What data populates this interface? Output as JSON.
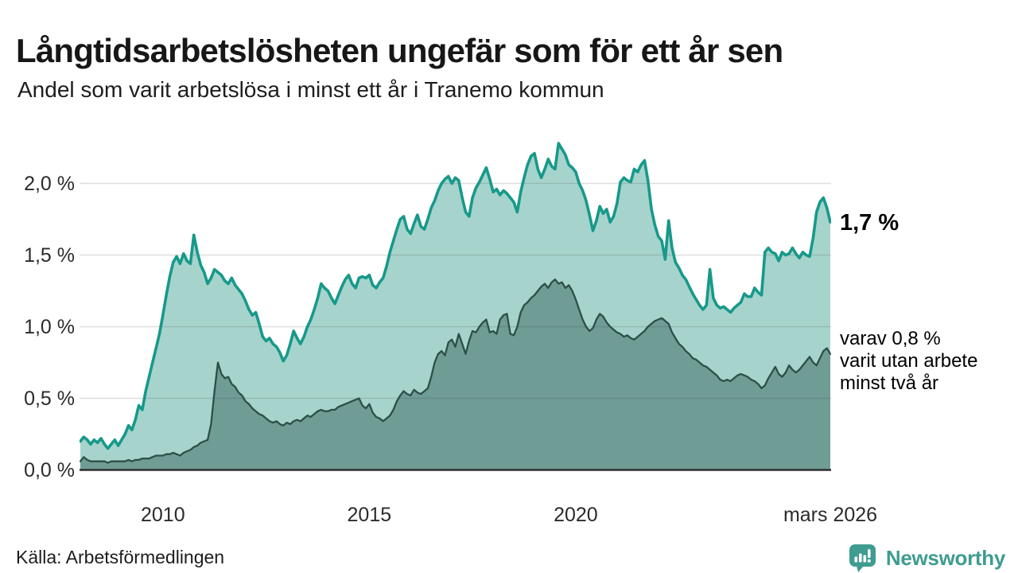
{
  "header": {
    "title": "Långtidsarbetslösheten ungefär som för ett år sen",
    "subtitle": "Andel som varit arbetslösa i minst ett år i Tranemo kommun"
  },
  "chart_data": {
    "type": "area",
    "unit": "%",
    "x_start": "2008-01",
    "x_end": "2026-03",
    "x_resolution": "monthly",
    "grid": true,
    "ylim": [
      0,
      2.34
    ],
    "y_ticks": [
      0,
      0.5,
      1.0,
      1.5,
      2.0
    ],
    "y_tick_labels": [
      "0,0 %",
      "0,5 %",
      "1,0 %",
      "1,5 %",
      "2,0 %"
    ],
    "x_tick_indices": [
      24,
      84,
      144,
      218
    ],
    "x_tick_labels": [
      "2010",
      "2015",
      "2020",
      "mars 2026"
    ],
    "grid_color": "#dadada",
    "baseline_color": "#2f2f2f",
    "series": [
      {
        "name": "Andel arbetslösa minst ett år",
        "line_color": "#17998a",
        "fill_color": "#a6d4cd",
        "last_value": 1.7,
        "values": [
          0.2,
          0.23,
          0.21,
          0.18,
          0.21,
          0.19,
          0.22,
          0.18,
          0.15,
          0.18,
          0.21,
          0.17,
          0.21,
          0.25,
          0.31,
          0.28,
          0.35,
          0.45,
          0.42,
          0.55,
          0.65,
          0.75,
          0.85,
          0.95,
          1.08,
          1.22,
          1.35,
          1.45,
          1.49,
          1.44,
          1.51,
          1.46,
          1.44,
          1.64,
          1.52,
          1.43,
          1.38,
          1.3,
          1.34,
          1.4,
          1.38,
          1.36,
          1.32,
          1.3,
          1.34,
          1.29,
          1.26,
          1.23,
          1.18,
          1.12,
          1.08,
          1.1,
          1.02,
          0.93,
          0.9,
          0.92,
          0.88,
          0.86,
          0.82,
          0.76,
          0.8,
          0.88,
          0.97,
          0.92,
          0.88,
          0.93,
          1.0,
          1.05,
          1.12,
          1.2,
          1.3,
          1.27,
          1.25,
          1.2,
          1.16,
          1.22,
          1.28,
          1.33,
          1.36,
          1.3,
          1.27,
          1.34,
          1.35,
          1.34,
          1.36,
          1.29,
          1.27,
          1.31,
          1.34,
          1.42,
          1.52,
          1.6,
          1.68,
          1.75,
          1.77,
          1.68,
          1.65,
          1.72,
          1.78,
          1.7,
          1.68,
          1.75,
          1.83,
          1.88,
          1.95,
          2.0,
          2.03,
          2.05,
          2.0,
          2.04,
          2.02,
          1.9,
          1.8,
          1.77,
          1.9,
          1.97,
          2.01,
          2.06,
          2.11,
          2.03,
          1.94,
          1.96,
          1.92,
          1.95,
          1.93,
          1.9,
          1.87,
          1.8,
          1.94,
          2.04,
          2.13,
          2.19,
          2.21,
          2.1,
          2.04,
          2.1,
          2.17,
          2.12,
          2.1,
          2.28,
          2.24,
          2.2,
          2.13,
          2.11,
          2.08,
          2.0,
          1.95,
          1.88,
          1.78,
          1.67,
          1.74,
          1.84,
          1.79,
          1.82,
          1.73,
          1.77,
          1.86,
          2.01,
          2.04,
          2.02,
          2.01,
          2.1,
          2.08,
          2.13,
          2.16,
          2.02,
          1.82,
          1.71,
          1.63,
          1.6,
          1.47,
          1.74,
          1.55,
          1.45,
          1.41,
          1.36,
          1.33,
          1.28,
          1.23,
          1.19,
          1.15,
          1.12,
          1.15,
          1.4,
          1.2,
          1.15,
          1.13,
          1.14,
          1.12,
          1.1,
          1.13,
          1.15,
          1.17,
          1.23,
          1.21,
          1.21,
          1.27,
          1.24,
          1.22,
          1.52,
          1.55,
          1.52,
          1.51,
          1.46,
          1.52,
          1.5,
          1.51,
          1.55,
          1.51,
          1.48,
          1.52,
          1.5,
          1.49,
          1.62,
          1.8,
          1.87,
          1.9,
          1.83,
          1.73
        ]
      },
      {
        "name": "Andel arbetslösa minst två år",
        "line_color": "#2e4e49",
        "fill_color": "#6f9d96",
        "last_value": 0.8,
        "values": [
          0.06,
          0.09,
          0.07,
          0.06,
          0.06,
          0.06,
          0.06,
          0.06,
          0.05,
          0.06,
          0.06,
          0.06,
          0.06,
          0.06,
          0.07,
          0.06,
          0.07,
          0.07,
          0.08,
          0.08,
          0.08,
          0.09,
          0.1,
          0.1,
          0.1,
          0.11,
          0.11,
          0.12,
          0.11,
          0.1,
          0.12,
          0.13,
          0.14,
          0.16,
          0.17,
          0.19,
          0.2,
          0.21,
          0.32,
          0.55,
          0.75,
          0.67,
          0.64,
          0.65,
          0.6,
          0.58,
          0.54,
          0.52,
          0.48,
          0.46,
          0.43,
          0.41,
          0.39,
          0.38,
          0.36,
          0.34,
          0.33,
          0.34,
          0.32,
          0.31,
          0.33,
          0.32,
          0.34,
          0.35,
          0.34,
          0.36,
          0.38,
          0.37,
          0.39,
          0.41,
          0.42,
          0.41,
          0.41,
          0.42,
          0.42,
          0.44,
          0.45,
          0.46,
          0.47,
          0.48,
          0.49,
          0.5,
          0.45,
          0.43,
          0.46,
          0.4,
          0.37,
          0.36,
          0.34,
          0.36,
          0.38,
          0.42,
          0.48,
          0.52,
          0.55,
          0.53,
          0.52,
          0.56,
          0.54,
          0.53,
          0.55,
          0.57,
          0.65,
          0.75,
          0.81,
          0.83,
          0.8,
          0.89,
          0.91,
          0.86,
          0.95,
          0.88,
          0.81,
          0.9,
          0.97,
          0.96,
          1.0,
          1.03,
          1.05,
          0.96,
          0.97,
          0.95,
          1.05,
          1.08,
          1.09,
          0.95,
          0.94,
          1.0,
          1.1,
          1.15,
          1.17,
          1.2,
          1.22,
          1.25,
          1.28,
          1.3,
          1.27,
          1.31,
          1.33,
          1.3,
          1.31,
          1.27,
          1.29,
          1.25,
          1.19,
          1.12,
          1.05,
          1.0,
          0.97,
          0.99,
          1.05,
          1.09,
          1.07,
          1.03,
          1.0,
          0.98,
          0.96,
          0.95,
          0.93,
          0.94,
          0.92,
          0.91,
          0.93,
          0.95,
          0.97,
          1.0,
          1.02,
          1.04,
          1.05,
          1.06,
          1.04,
          1.02,
          0.96,
          0.92,
          0.88,
          0.86,
          0.83,
          0.81,
          0.78,
          0.77,
          0.75,
          0.73,
          0.72,
          0.7,
          0.68,
          0.66,
          0.63,
          0.62,
          0.63,
          0.62,
          0.64,
          0.66,
          0.67,
          0.66,
          0.65,
          0.63,
          0.62,
          0.6,
          0.57,
          0.59,
          0.64,
          0.68,
          0.72,
          0.67,
          0.65,
          0.68,
          0.73,
          0.7,
          0.68,
          0.7,
          0.73,
          0.76,
          0.79,
          0.75,
          0.73,
          0.78,
          0.83,
          0.85,
          0.81
        ]
      }
    ],
    "annotations": {
      "last_value_label": "1,7 %",
      "sub_label_lines": [
        "varav 0,8 %",
        "varit utan arbete",
        "minst två år"
      ]
    }
  },
  "footer": {
    "source": "Källa: Arbetsförmedlingen",
    "brand": "Newsworthy",
    "brand_color": "#3e9c90",
    "brand_icon": "bar-chart-speech-bubble"
  }
}
